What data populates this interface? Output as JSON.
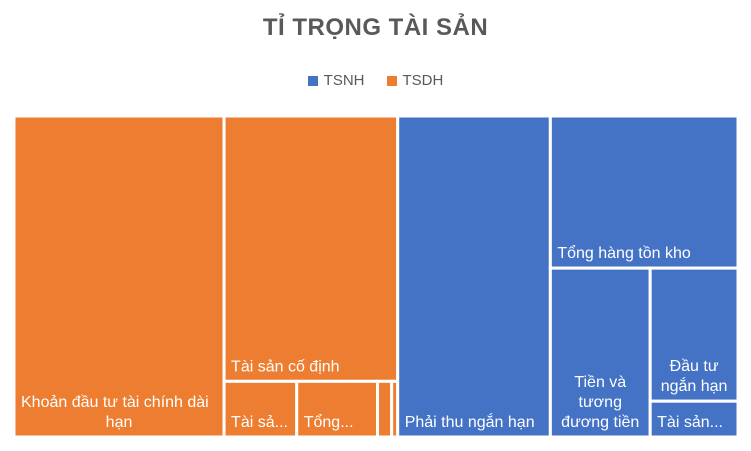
{
  "chart_data": {
    "type": "treemap",
    "title": "TỈ TRỌNG TÀI SẢN",
    "legend": {
      "placement": "top-center"
    },
    "series": [
      {
        "name": "TSNH",
        "color": "#4472C4"
      },
      {
        "name": "TSDH",
        "color": "#ED7D31"
      }
    ],
    "items": [
      {
        "series": "TSDH",
        "label": "Khoản đầu tư tài chính dài hạn",
        "value": 30.0
      },
      {
        "series": "TSDH",
        "label": "Tài sản cố định",
        "value": 20.5
      },
      {
        "series": "TSDH",
        "label": "Tài sả...",
        "value": 1.8
      },
      {
        "series": "TSDH",
        "label": "Tổng...",
        "value": 2.0
      },
      {
        "series": "TSDH",
        "label": "",
        "value": 0.35
      },
      {
        "series": "TSDH",
        "label": "",
        "value": 0.15
      },
      {
        "series": "TSNH",
        "label": "Phải thu ngắn hạn",
        "value": 21.8
      },
      {
        "series": "TSNH",
        "label": "Tổng hàng tồn kho",
        "value": 12.7
      },
      {
        "series": "TSNH",
        "label": "Tiền và tương đương tiền",
        "value": 7.5
      },
      {
        "series": "TSNH",
        "label": "Đầu tư ngắn hạn",
        "value": 5.2
      },
      {
        "series": "TSNH",
        "label": "Tài sản...",
        "value": 1.4
      }
    ]
  }
}
